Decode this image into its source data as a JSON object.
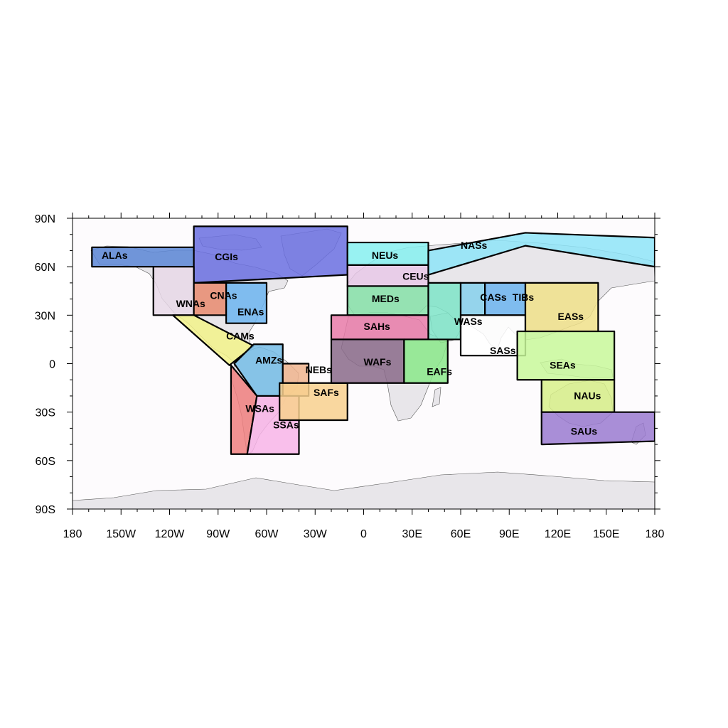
{
  "map": {
    "projection": "equirectangular",
    "lon_range": [
      -180,
      180
    ],
    "lat_range": [
      -90,
      90
    ],
    "ocean_color": "#fdfbfd",
    "land_color": "#e8e6ea",
    "x_ticks": [
      {
        "value": -180,
        "label": "180"
      },
      {
        "value": -150,
        "label": "150W"
      },
      {
        "value": -120,
        "label": "120W"
      },
      {
        "value": -90,
        "label": "90W"
      },
      {
        "value": -60,
        "label": "60W"
      },
      {
        "value": -30,
        "label": "30W"
      },
      {
        "value": 0,
        "label": "0"
      },
      {
        "value": 30,
        "label": "30E"
      },
      {
        "value": 60,
        "label": "60E"
      },
      {
        "value": 90,
        "label": "90E"
      },
      {
        "value": 120,
        "label": "120E"
      },
      {
        "value": 150,
        "label": "150E"
      },
      {
        "value": 180,
        "label": "180"
      }
    ],
    "y_ticks": [
      {
        "value": 90,
        "label": "90N"
      },
      {
        "value": 60,
        "label": "60N"
      },
      {
        "value": 30,
        "label": "30N"
      },
      {
        "value": 0,
        "label": "0"
      },
      {
        "value": -30,
        "label": "30S"
      },
      {
        "value": -60,
        "label": "60S"
      },
      {
        "value": -90,
        "label": "90S"
      }
    ],
    "regions": [
      {
        "name": "ALAs",
        "color": "#5b86d6",
        "label_at": [
          -162,
          65
        ],
        "poly": [
          [
            -168,
            72
          ],
          [
            -105,
            72
          ],
          [
            -105,
            60
          ],
          [
            -168,
            60
          ]
        ]
      },
      {
        "name": "CGIs",
        "color": "#6a6ee0",
        "label_at": [
          -92,
          64
        ],
        "poly": [
          [
            -105,
            85
          ],
          [
            -10,
            85
          ],
          [
            -10,
            55
          ],
          [
            -105,
            50
          ]
        ]
      },
      {
        "name": "WNAs",
        "color": "#e8d8e8",
        "label_at": [
          -116,
          35
        ],
        "poly": [
          [
            -130,
            60
          ],
          [
            -105,
            60
          ],
          [
            -105,
            30
          ],
          [
            -130,
            30
          ]
        ]
      },
      {
        "name": "CNAs",
        "color": "#e88a6e",
        "label_at": [
          -95,
          40
        ],
        "poly": [
          [
            -105,
            50
          ],
          [
            -85,
            50
          ],
          [
            -85,
            30
          ],
          [
            -105,
            30
          ]
        ]
      },
      {
        "name": "ENAs",
        "color": "#6cb4f0",
        "label_at": [
          -78,
          30
        ],
        "poly": [
          [
            -85,
            50
          ],
          [
            -60,
            50
          ],
          [
            -60,
            25
          ],
          [
            -85,
            25
          ]
        ]
      },
      {
        "name": "CAMs",
        "color": "#f2f28a",
        "label_at": [
          -85,
          15
        ],
        "poly": [
          [
            -118,
            30
          ],
          [
            -105,
            30
          ],
          [
            -68,
            11
          ],
          [
            -83,
            -1
          ]
        ]
      },
      {
        "name": "AMZs",
        "color": "#74bce6",
        "label_at": [
          -67,
          0
        ],
        "poly": [
          [
            -80,
            0
          ],
          [
            -68,
            12
          ],
          [
            -50,
            12
          ],
          [
            -50,
            -20
          ],
          [
            -66,
            -20
          ]
        ]
      },
      {
        "name": "NEBs",
        "color": "#f0b48e",
        "label_at": [
          -36,
          -6
        ],
        "poly": [
          [
            -50,
            0
          ],
          [
            -34,
            0
          ],
          [
            -34,
            -20
          ],
          [
            -50,
            -20
          ]
        ]
      },
      {
        "name": "WSAs",
        "color": "#f07f7f",
        "label_at": [
          -73,
          -30
        ],
        "poly": [
          [
            -82,
            -1
          ],
          [
            -66,
            -20
          ],
          [
            -72,
            -56
          ],
          [
            -82,
            -56
          ]
        ]
      },
      {
        "name": "SSAs",
        "color": "#f8b4e8",
        "label_at": [
          -56,
          -40
        ],
        "poly": [
          [
            -66,
            -20
          ],
          [
            -40,
            -20
          ],
          [
            -40,
            -56
          ],
          [
            -72,
            -56
          ]
        ]
      },
      {
        "name": "SAFs",
        "color": "#f8d08e",
        "label_at": [
          -31,
          -20
        ],
        "poly": [
          [
            -52,
            -12
          ],
          [
            -10,
            -12
          ],
          [
            -10,
            -35
          ],
          [
            -52,
            -35
          ]
        ]
      },
      {
        "name": "NEUs",
        "color": "#86f0f0",
        "label_at": [
          5,
          65
        ],
        "poly": [
          [
            -10,
            75
          ],
          [
            40,
            75
          ],
          [
            40,
            61
          ],
          [
            -10,
            61
          ]
        ]
      },
      {
        "name": "CEUs",
        "color": "#e8c8e8",
        "label_at": [
          24,
          52
        ],
        "poly": [
          [
            -10,
            61
          ],
          [
            40,
            61
          ],
          [
            40,
            48
          ],
          [
            -10,
            48
          ]
        ]
      },
      {
        "name": "MEDs",
        "color": "#86e0a8",
        "label_at": [
          5,
          38
        ],
        "poly": [
          [
            -10,
            48
          ],
          [
            40,
            48
          ],
          [
            40,
            30
          ],
          [
            -10,
            30
          ]
        ]
      },
      {
        "name": "SAHs",
        "color": "#e87aa8",
        "label_at": [
          0,
          21
        ],
        "poly": [
          [
            -20,
            30
          ],
          [
            40,
            30
          ],
          [
            40,
            15
          ],
          [
            -20,
            15
          ]
        ]
      },
      {
        "name": "WAFs",
        "color": "#8a6a8a",
        "label_at": [
          0,
          -1
        ],
        "poly": [
          [
            -20,
            15
          ],
          [
            25,
            15
          ],
          [
            25,
            -12
          ],
          [
            -20,
            -12
          ]
        ]
      },
      {
        "name": "EAFs",
        "color": "#8ae88a",
        "label_at": [
          39,
          -7
        ],
        "poly": [
          [
            25,
            15
          ],
          [
            52,
            15
          ],
          [
            52,
            -12
          ],
          [
            25,
            -12
          ]
        ]
      },
      {
        "name": "NASs",
        "color": "#8ee4f8",
        "label_at": [
          60,
          71
        ],
        "poly": [
          [
            40,
            70
          ],
          [
            100,
            81
          ],
          [
            180,
            78
          ],
          [
            180,
            60
          ],
          [
            100,
            73
          ],
          [
            40,
            55
          ]
        ]
      },
      {
        "name": "WASs",
        "color": "#7ee4c8",
        "label_at": [
          56,
          24
        ],
        "poly": [
          [
            40,
            50
          ],
          [
            60,
            50
          ],
          [
            60,
            15
          ],
          [
            40,
            15
          ]
        ]
      },
      {
        "name": "CASs",
        "color": "#86d0ec",
        "label_at": [
          72,
          39
        ],
        "poly": [
          [
            60,
            50
          ],
          [
            75,
            50
          ],
          [
            75,
            30
          ],
          [
            60,
            30
          ]
        ]
      },
      {
        "name": "TIBs",
        "color": "#6cb4f0",
        "label_at": [
          92,
          39
        ],
        "poly": [
          [
            75,
            50
          ],
          [
            100,
            50
          ],
          [
            100,
            30
          ],
          [
            75,
            30
          ]
        ]
      },
      {
        "name": "SASs",
        "color": "#ffffff",
        "label_at": [
          78,
          6
        ],
        "poly": [
          [
            60,
            30
          ],
          [
            100,
            30
          ],
          [
            100,
            5
          ],
          [
            60,
            5
          ]
        ]
      },
      {
        "name": "EASs",
        "color": "#f0e08a",
        "label_at": [
          120,
          27
        ],
        "poly": [
          [
            100,
            50
          ],
          [
            145,
            50
          ],
          [
            145,
            20
          ],
          [
            100,
            20
          ]
        ]
      },
      {
        "name": "SEAs",
        "color": "#c8f89a",
        "label_at": [
          115,
          -3
        ],
        "poly": [
          [
            95,
            20
          ],
          [
            155,
            20
          ],
          [
            155,
            -10
          ],
          [
            95,
            -10
          ]
        ]
      },
      {
        "name": "NAUs",
        "color": "#d8f08a",
        "label_at": [
          130,
          -22
        ],
        "poly": [
          [
            110,
            -10
          ],
          [
            155,
            -10
          ],
          [
            155,
            -30
          ],
          [
            110,
            -30
          ]
        ]
      },
      {
        "name": "SAUs",
        "color": "#9a7ad0",
        "label_at": [
          128,
          -44
        ],
        "poly": [
          [
            110,
            -30
          ],
          [
            180,
            -30
          ],
          [
            180,
            -48
          ],
          [
            110,
            -50
          ]
        ]
      }
    ]
  }
}
